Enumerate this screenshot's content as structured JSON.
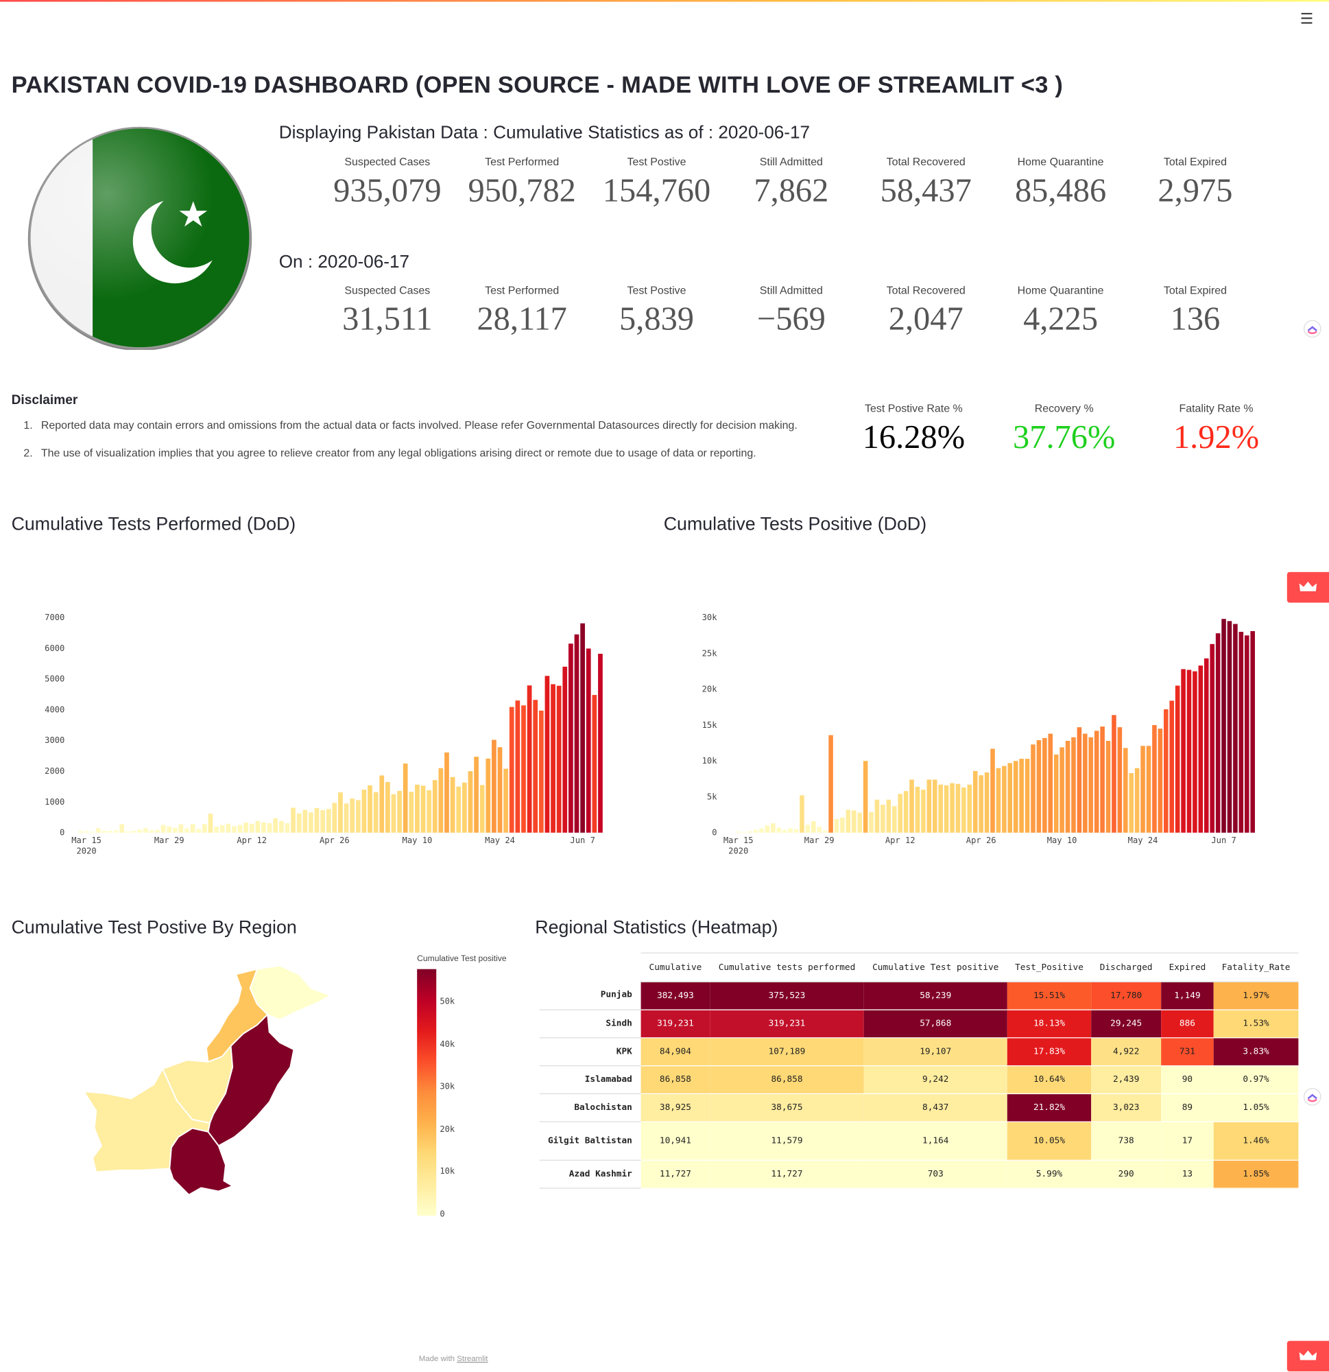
{
  "menu": {
    "icon": "hamburger-menu-icon"
  },
  "title": "PAKISTAN COVID-19 DASHBOARD (OPEN SOURCE - MADE WITH LOVE OF STREAMLIT <3 )",
  "cumulative": {
    "heading": "Displaying Pakistan Data : Cumulative Statistics as of : 2020-06-17",
    "kpis": [
      {
        "label": "Suspected Cases",
        "value": "935,079"
      },
      {
        "label": "Test Performed",
        "value": "950,782"
      },
      {
        "label": "Test Postive",
        "value": "154,760"
      },
      {
        "label": "Still Admitted",
        "value": "7,862"
      },
      {
        "label": "Total Recovered",
        "value": "58,437"
      },
      {
        "label": "Home Quarantine",
        "value": "85,486"
      },
      {
        "label": "Total Expired",
        "value": "2,975"
      }
    ]
  },
  "daily": {
    "heading": "On : 2020-06-17",
    "kpis": [
      {
        "label": "Suspected Cases",
        "value": "31,511"
      },
      {
        "label": "Test Performed",
        "value": "28,117"
      },
      {
        "label": "Test Postive",
        "value": "5,839"
      },
      {
        "label": "Still Admitted",
        "value": "−569"
      },
      {
        "label": "Total Recovered",
        "value": "2,047"
      },
      {
        "label": "Home Quarantine",
        "value": "4,225"
      },
      {
        "label": "Total Expired",
        "value": "136"
      }
    ]
  },
  "disclaimer": {
    "heading": "Disclaimer",
    "items": [
      "Reported data may contain errors and omissions from the actual data or facts involved. Please refer Governmental Datasources directly for decision making.",
      "The use of visualization implies that you agree to relieve creator from any legal obligations arising direct or remote due to usage of data or reporting."
    ]
  },
  "rates": [
    {
      "label": "Test Postive Rate %",
      "value": "16.28%",
      "color": "#000000"
    },
    {
      "label": "Recovery %",
      "value": "37.76%",
      "color": "#1fd01f"
    },
    {
      "label": "Fatality Rate %",
      "value": "1.92%",
      "color": "#ff2a1a"
    }
  ],
  "sections": {
    "tests_performed": "Cumulative Tests Performed (DoD)",
    "tests_positive": "Cumulative Tests Positive (DoD)",
    "by_region": "Cumulative Test Postive By Region",
    "heatmap": "Regional Statistics (Heatmap)"
  },
  "map": {
    "colorbar_title": "Cumulative Test positive",
    "colorbar_ticks": [
      "50k",
      "40k",
      "30k",
      "20k",
      "10k",
      "0"
    ],
    "colorscale": [
      "#ffffcc",
      "#ffeda0",
      "#fed976",
      "#feb24c",
      "#fd8d3c",
      "#fc4e2a",
      "#e31a1c",
      "#bd0026",
      "#800026"
    ]
  },
  "heatmap": {
    "columns": [
      "Cumulative",
      "Cumulative tests performed",
      "Cumulative Test positive",
      "Test_Positive",
      "Discharged",
      "Expired",
      "Fatality_Rate"
    ],
    "rows": [
      {
        "region": "Punjab",
        "cells": [
          "382,493",
          "375,523",
          "58,239",
          "15.51%",
          "17,780",
          "1,149",
          "1.97%"
        ],
        "colors": [
          "#800026",
          "#800026",
          "#800026",
          "#fd5a2a",
          "#fc4e2a",
          "#800026",
          "#feb24c"
        ]
      },
      {
        "region": "Sindh",
        "cells": [
          "319,231",
          "319,231",
          "57,868",
          "18.13%",
          "29,245",
          "886",
          "1.53%"
        ],
        "colors": [
          "#c3102a",
          "#c3102a",
          "#800026",
          "#e31a1c",
          "#800026",
          "#e31a1c",
          "#fed976"
        ]
      },
      {
        "region": "KPK",
        "cells": [
          "84,904",
          "107,189",
          "19,107",
          "17.83%",
          "4,922",
          "731",
          "3.83%"
        ],
        "colors": [
          "#fed976",
          "#fed976",
          "#fee187",
          "#e31a1c",
          "#fee187",
          "#fc4e2a",
          "#800026"
        ]
      },
      {
        "region": "Islamabad",
        "cells": [
          "86,858",
          "86,858",
          "9,242",
          "10.64%",
          "2,439",
          "90",
          "0.97%"
        ],
        "colors": [
          "#fed976",
          "#fed976",
          "#ffeda0",
          "#fed976",
          "#ffeda0",
          "#ffffcc",
          "#ffffcc"
        ]
      },
      {
        "region": "Balochistan",
        "cells": [
          "38,925",
          "38,675",
          "8,437",
          "21.82%",
          "3,023",
          "89",
          "1.05%"
        ],
        "colors": [
          "#ffeda0",
          "#ffeda0",
          "#ffeda0",
          "#800026",
          "#ffeda0",
          "#ffffcc",
          "#ffffcc"
        ]
      },
      {
        "region": "Gilgit Baltistan",
        "cells": [
          "10,941",
          "11,579",
          "1,164",
          "10.05%",
          "738",
          "17",
          "1.46%"
        ],
        "colors": [
          "#ffffcc",
          "#ffffcc",
          "#ffffcc",
          "#fed976",
          "#ffffcc",
          "#ffffcc",
          "#fed976"
        ]
      },
      {
        "region": "Azad Kashmir",
        "cells": [
          "11,727",
          "11,727",
          "703",
          "5.99%",
          "290",
          "13",
          "1.85%"
        ],
        "colors": [
          "#ffffcc",
          "#ffffcc",
          "#ffffcc",
          "#ffffcc",
          "#ffffcc",
          "#ffffcc",
          "#feb24c"
        ]
      }
    ]
  },
  "chart_data": [
    {
      "type": "bar",
      "title": "Cumulative Tests Performed (DoD)",
      "x_ticks": [
        "Mar 15\n2020",
        "Mar 29",
        "Apr 12",
        "Apr 26",
        "May 10",
        "May 24",
        "Jun 7"
      ],
      "y_ticks": [
        "0",
        "1000",
        "2000",
        "3000",
        "4000",
        "5000",
        "6000",
        "7000"
      ],
      "ylim": [
        0,
        7000
      ],
      "x_start": "2020-03-13",
      "values": [
        0,
        50,
        50,
        30,
        150,
        60,
        60,
        70,
        280,
        40,
        60,
        100,
        150,
        80,
        90,
        250,
        200,
        160,
        270,
        140,
        280,
        120,
        280,
        620,
        200,
        240,
        290,
        210,
        250,
        330,
        290,
        380,
        340,
        310,
        470,
        380,
        310,
        810,
        630,
        740,
        660,
        800,
        730,
        770,
        970,
        1310,
        950,
        1110,
        1060,
        1400,
        1540,
        1320,
        1860,
        1650,
        1250,
        1360,
        2250,
        1330,
        1560,
        1530,
        1380,
        1710,
        2100,
        2610,
        1810,
        1500,
        1630,
        2000,
        2470,
        1550,
        2410,
        3020,
        2780,
        2080,
        4090,
        4300,
        4140,
        4790,
        4320,
        3970,
        5100,
        4830,
        4780,
        5400,
        6150,
        6450,
        6810,
        5990,
        4480,
        5820
      ]
    },
    {
      "type": "bar",
      "title": "Cumulative Tests Positive (DoD)",
      "x_ticks": [
        "Mar 15\n2020",
        "Mar 29",
        "Apr 12",
        "Apr 26",
        "May 10",
        "May 24",
        "Jun 7"
      ],
      "y_ticks": [
        "0",
        "5k",
        "10k",
        "15k",
        "20k",
        "25k",
        "30k"
      ],
      "ylim": [
        0,
        30000
      ],
      "x_start": "2020-03-13",
      "values": [
        0,
        0,
        150,
        100,
        200,
        400,
        600,
        1000,
        1300,
        700,
        400,
        600,
        500,
        5200,
        1100,
        1600,
        800,
        300,
        13600,
        1900,
        2100,
        3200,
        3100,
        2800,
        10000,
        2900,
        4600,
        3900,
        4600,
        3700,
        5400,
        5800,
        7400,
        6400,
        6000,
        7400,
        7400,
        6700,
        6600,
        6900,
        6800,
        6300,
        6700,
        8600,
        8000,
        8400,
        11700,
        9000,
        9300,
        9700,
        10000,
        10300,
        10300,
        12300,
        12900,
        13200,
        13800,
        10900,
        11900,
        12800,
        13300,
        14700,
        13800,
        13300,
        14200,
        14800,
        12800,
        16400,
        14700,
        11800,
        8300,
        9000,
        12100,
        12100,
        15000,
        14500,
        17200,
        18400,
        20500,
        22800,
        22700,
        22500,
        23300,
        24300,
        26300,
        27800,
        29800,
        29500,
        29100,
        28000,
        27500,
        28100
      ]
    },
    {
      "type": "heatmap",
      "title": "Regional Statistics (Heatmap)",
      "columns": [
        "Cumulative",
        "Cumulative tests performed",
        "Cumulative Test positive",
        "Test_Positive",
        "Discharged",
        "Expired",
        "Fatality_Rate"
      ],
      "rows": [
        "Punjab",
        "Sindh",
        "KPK",
        "Islamabad",
        "Balochistan",
        "Gilgit Baltistan",
        "Azad Kashmir"
      ],
      "values": [
        [
          382493,
          375523,
          58239,
          15.51,
          17780,
          1149,
          1.97
        ],
        [
          319231,
          319231,
          57868,
          18.13,
          29245,
          886,
          1.53
        ],
        [
          84904,
          107189,
          19107,
          17.83,
          4922,
          731,
          3.83
        ],
        [
          86858,
          86858,
          9242,
          10.64,
          2439,
          90,
          0.97
        ],
        [
          38925,
          38675,
          8437,
          21.82,
          3023,
          89,
          1.05
        ],
        [
          10941,
          11579,
          1164,
          10.05,
          738,
          17,
          1.46
        ],
        [
          11727,
          11727,
          703,
          5.99,
          290,
          13,
          1.85
        ]
      ]
    }
  ],
  "footer": {
    "prefix": "Made with ",
    "link": "Streamlit"
  }
}
